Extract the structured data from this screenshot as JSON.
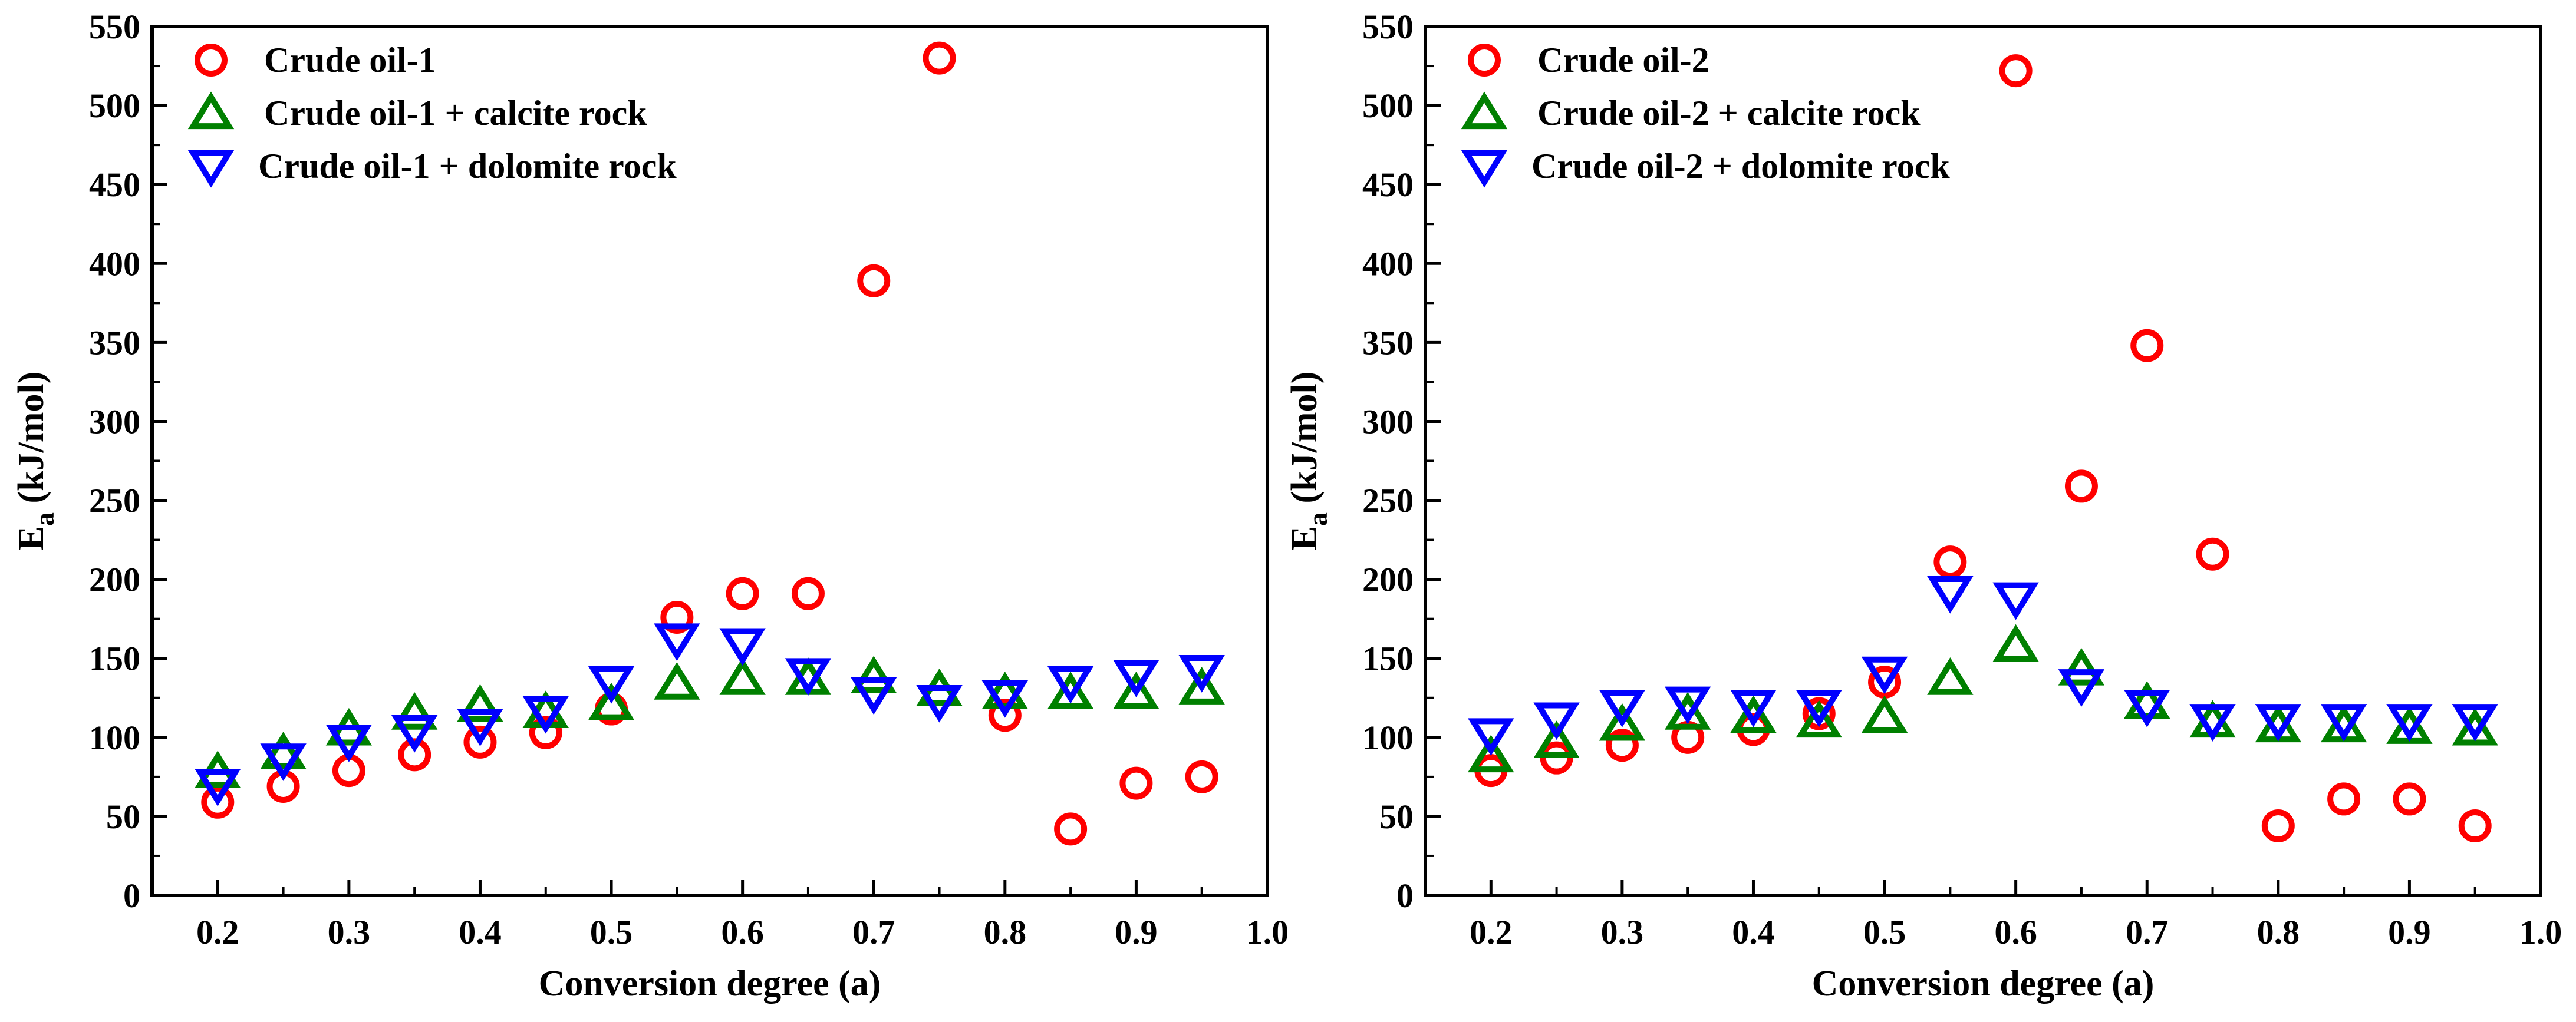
{
  "chart_data": [
    {
      "type": "scatter",
      "xlabel": "Conversion degree (a)",
      "ylabel_main": "E",
      "ylabel_sub": "a",
      "ylabel_rest": " (kJ/mol)",
      "xlim": [
        0.15,
        1.0
      ],
      "ylim": [
        0,
        550
      ],
      "xticks": [
        "0.2",
        "0.3",
        "0.4",
        "0.5",
        "0.6",
        "0.7",
        "0.8",
        "0.9",
        "1.0"
      ],
      "yticks": [
        "0",
        "50",
        "100",
        "150",
        "200",
        "250",
        "300",
        "350",
        "400",
        "450",
        "500",
        "550"
      ],
      "x": [
        0.2,
        0.25,
        0.3,
        0.35,
        0.4,
        0.45,
        0.5,
        0.55,
        0.6,
        0.65,
        0.7,
        0.75,
        0.8,
        0.85,
        0.9,
        0.95
      ],
      "legend_position": "top-left",
      "series": [
        {
          "name": "Crude oil-1",
          "marker": "circle",
          "color": "#ff0000",
          "values": [
            59,
            69,
            79,
            89,
            97,
            103,
            118,
            176,
            191,
            191,
            389,
            530,
            114,
            42,
            71,
            75
          ]
        },
        {
          "name": "Crude oil-1 + calcite rock",
          "marker": "triangle-up",
          "color": "#008000",
          "values": [
            78,
            90,
            105,
            115,
            120,
            116,
            121,
            134,
            137,
            137,
            138,
            130,
            128,
            128,
            128,
            131
          ]
        },
        {
          "name": "Crude oil-1 + dolomite rock",
          "marker": "triangle-down",
          "color": "#0000ff",
          "values": [
            70,
            86,
            98,
            104,
            108,
            116,
            135,
            162,
            159,
            140,
            128,
            123,
            126,
            135,
            139,
            142
          ]
        }
      ]
    },
    {
      "type": "scatter",
      "xlabel": "Conversion degree (a)",
      "ylabel_main": "E",
      "ylabel_sub": "a",
      "ylabel_rest": " (kJ/mol)",
      "xlim": [
        0.15,
        1.0
      ],
      "ylim": [
        0,
        550
      ],
      "xticks": [
        "0.2",
        "0.3",
        "0.4",
        "0.5",
        "0.6",
        "0.7",
        "0.8",
        "0.9",
        "1.0"
      ],
      "yticks": [
        "0",
        "50",
        "100",
        "150",
        "200",
        "250",
        "300",
        "350",
        "400",
        "450",
        "500",
        "550"
      ],
      "x": [
        0.2,
        0.25,
        0.3,
        0.35,
        0.4,
        0.45,
        0.5,
        0.55,
        0.6,
        0.65,
        0.7,
        0.75,
        0.8,
        0.85,
        0.9,
        0.95
      ],
      "legend_position": "top-left",
      "series": [
        {
          "name": "Crude oil-2",
          "marker": "circle",
          "color": "#ff0000",
          "values": [
            79,
            87,
            95,
            100,
            105,
            115,
            135,
            211,
            522,
            259,
            348,
            216,
            44,
            61,
            61,
            44
          ]
        },
        {
          "name": "Crude oil-2 + calcite rock",
          "marker": "triangle-up",
          "color": "#008000",
          "values": [
            88,
            97,
            108,
            115,
            113,
            110,
            113,
            137,
            158,
            143,
            122,
            110,
            107,
            107,
            106,
            105
          ]
        },
        {
          "name": "Crude oil-2 + dolomite rock",
          "marker": "triangle-down",
          "color": "#0000ff",
          "values": [
            102,
            112,
            120,
            122,
            120,
            120,
            141,
            192,
            188,
            133,
            120,
            111,
            111,
            111,
            111,
            111
          ]
        }
      ]
    }
  ]
}
